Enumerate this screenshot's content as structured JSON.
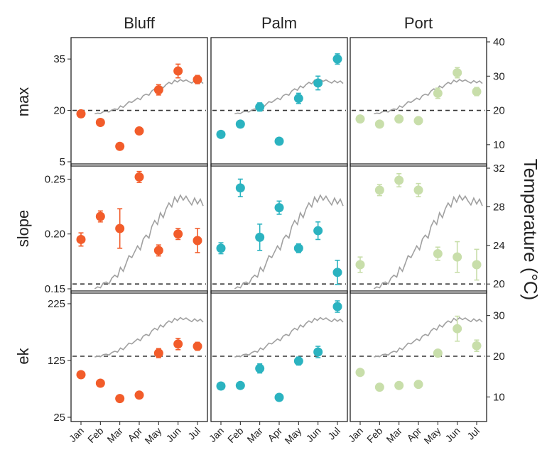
{
  "chart_data": {
    "type": "scatter",
    "months": [
      "Jan",
      "Feb",
      "Mar",
      "Apr",
      "May",
      "Jun",
      "Jul"
    ],
    "sites": [
      "Bluff",
      "Palm",
      "Port"
    ],
    "site_colors": [
      "#f25c2a",
      "#2bb3c0",
      "#c8deaa"
    ],
    "temperature_label": "Temperature (°C)",
    "temp_line_color": "#a0a0a0",
    "reference_line": "dashed",
    "temperature_series": [
      19.4,
      19.6,
      19.5,
      20.0,
      20.1,
      19.9,
      20.5,
      20.8,
      20.6,
      21.6,
      21.2,
      22.0,
      22.8,
      22.6,
      23.2,
      23.8,
      23.4,
      24.5,
      24.9,
      24.6,
      25.8,
      26.4,
      26.0,
      27.2,
      26.7,
      27.6,
      28.2,
      27.8,
      28.8,
      28.3,
      29.0,
      28.5,
      28.9,
      28.4,
      28.0,
      28.7,
      28.1,
      28.6,
      27.9
    ],
    "rows": [
      {
        "name": "max",
        "ylim": [
          5,
          40
        ],
        "yticks": [
          5,
          20,
          35
        ],
        "temp_ylim": [
          5,
          40
        ],
        "temp_ticks": [
          10,
          20,
          30,
          40
        ],
        "ref_temp": 20,
        "temp_range": [
          19,
          29
        ],
        "panels": [
          {
            "values": [
              19,
              16.5,
              9.5,
              14,
              26,
              31.5,
              29
            ],
            "errors": [
              0.8,
              0.8,
              0.8,
              0.8,
              1.5,
              2.0,
              1.2
            ]
          },
          {
            "values": [
              13,
              16,
              21,
              11,
              23.5,
              28,
              35
            ],
            "errors": [
              0.8,
              0.8,
              1.2,
              0.8,
              1.5,
              2.0,
              1.5
            ]
          },
          {
            "values": [
              17.5,
              16,
              17.5,
              17,
              25,
              31,
              25.5
            ],
            "errors": [
              0.8,
              0.8,
              0.8,
              0.8,
              1.5,
              1.5,
              1.2
            ]
          }
        ]
      },
      {
        "name": "slope",
        "ylim": [
          0.15,
          0.26
        ],
        "yticks": [
          0.15,
          0.2,
          0.25
        ],
        "temp_ylim": [
          19.5,
          32
        ],
        "temp_ticks": [
          20,
          24,
          28,
          32
        ],
        "ref_temp": 20,
        "temp_range": [
          19.5,
          29.2
        ],
        "panels": [
          {
            "values": [
              0.195,
              0.216,
              0.205,
              0.252,
              0.185,
              0.2,
              0.194
            ],
            "errors": [
              0.006,
              0.005,
              0.018,
              0.005,
              0.005,
              0.005,
              0.011
            ]
          },
          {
            "values": [
              0.187,
              0.242,
              0.197,
              0.224,
              0.187,
              0.203,
              0.165
            ],
            "errors": [
              0.005,
              0.008,
              0.012,
              0.006,
              0.004,
              0.008,
              0.011
            ]
          },
          {
            "values": [
              0.172,
              0.24,
              0.249,
              0.24,
              0.182,
              0.179,
              0.172
            ],
            "errors": [
              0.007,
              0.005,
              0.006,
              0.006,
              0.006,
              0.014,
              0.014
            ]
          }
        ]
      },
      {
        "name": "ek",
        "ylim": [
          25,
          240
        ],
        "yticks": [
          25,
          125,
          225
        ],
        "temp_ylim": [
          5,
          35
        ],
        "temp_ticks": [
          10,
          20,
          30
        ],
        "ref_temp": 20,
        "temp_range": [
          19.8,
          29.5
        ],
        "panels": [
          {
            "values": [
              100,
              85,
              58,
              64,
              138,
              154,
              150
            ],
            "errors": [
              3,
              3,
              3,
              3,
              8,
              10,
              7
            ]
          },
          {
            "values": [
              80,
              81,
              111,
              60,
              124,
              140,
              220
            ],
            "errors": [
              3,
              3,
              8,
              3,
              7,
              10,
              10
            ]
          },
          {
            "values": [
              104,
              78,
              81,
              83,
              138,
              181,
              151
            ],
            "errors": [
              3,
              3,
              3,
              3,
              5,
              22,
              10
            ]
          }
        ]
      }
    ]
  }
}
